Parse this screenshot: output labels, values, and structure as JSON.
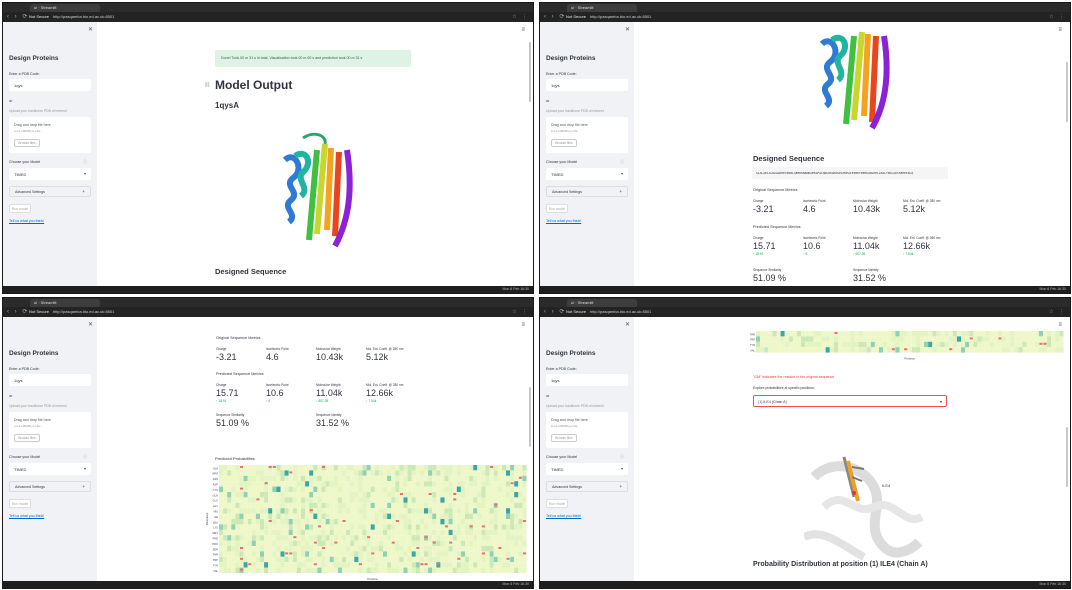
{
  "browser": {
    "tab_title": "ui · Streamlit",
    "not_secure": "Not Secure",
    "url": "http://pasqamba.bio.ed.ac.uk:8501",
    "taskbar_right": "Mon 6 Feb  16:30"
  },
  "sidebar": {
    "title": "Design Proteins",
    "pdb_label": "Enter a PDB Code:",
    "pdb_value": "1qys",
    "or_label": "or",
    "upload_label": "Upload your backbone PDB of interest",
    "drop_text": "Drag and drop file here",
    "drop_limit": "Limit 200MB per file",
    "browse_label": "Browse files",
    "model_label": "Choose your Model",
    "model_value": "TIMED",
    "advanced_label": "Advanced Settings",
    "run_label": "Run model",
    "feedback_link": "Tell us what you think!"
  },
  "screen1": {
    "success_text": "Done! Took 00 m 31 s in total. Visualisation took 00 m 00 s and prediction took 00 m 31 s",
    "heading": "Model Output",
    "pdb_heading": "1qysA",
    "designed_heading": "Designed Sequence"
  },
  "screen2": {
    "designed_heading": "Designed Sequence",
    "sequence": "SLALAELALKAAGKEEVIRRLQEEKKNKNKAEKGFAIQRLKKAKPGEGYKEAIEIMKTPEEKANLEELLKALYKKLGDYAEEEIKLQ",
    "original_heading": "Original Sequence Metrics",
    "predicted_heading": "Predicted Sequence Metrics",
    "labels": [
      "Charge",
      "Isoelectric Point",
      "Molecular Weight",
      "Mol. Ext. Coeff. @ 280 nm"
    ],
    "original_values": [
      "-3.21",
      "4.6",
      "10.43k",
      "5.12k"
    ],
    "predicted_values": [
      "15.71",
      "10.6",
      "11.04k",
      "12.66k"
    ],
    "predicted_deltas": [
      "18.91",
      "6",
      "607.39",
      "7.54k"
    ],
    "similarity_label": "Sequence Similarity",
    "similarity_value": "51.09 %",
    "identity_label": "Sequence Identity",
    "identity_value": "31.52 %"
  },
  "screen3": {
    "original_heading": "Original Sequence Metrics",
    "predicted_heading": "Predicted Sequence Metrics",
    "heatmap_title": "Predicted Probabilities",
    "y_axis": [
      "ALA",
      "ARG",
      "ASN",
      "ASP",
      "CYS",
      "GLN",
      "GLU",
      "GLY",
      "HIS",
      "ILE",
      "LEU",
      "LYS",
      "MET",
      "PHE",
      "PRO",
      "SER",
      "THR",
      "TRP",
      "TYR",
      "VAL"
    ],
    "y_axis_title": "Residues",
    "x_axis_title": "Position"
  },
  "screen4": {
    "top_rows": [
      "THR",
      "TRP",
      "TYR",
      "VAL"
    ],
    "x_axis_title": "Position",
    "red_note": "\"GM\" indicates the residue in the original sequence.",
    "explore_label": "Explore probabilities at specific positions:",
    "select_value": "(1) ILE4 (Chain A)",
    "residue_label": "ILE4",
    "prob_heading": "Probability Distribution at position (1) ILE4 (Chain A)"
  },
  "colors": {
    "accent": "#ff4b4b",
    "sidebar_bg": "#f0f2f6",
    "success_bg": "#dff2e6",
    "link": "#0068c9",
    "delta_up": "#09ab3b"
  }
}
